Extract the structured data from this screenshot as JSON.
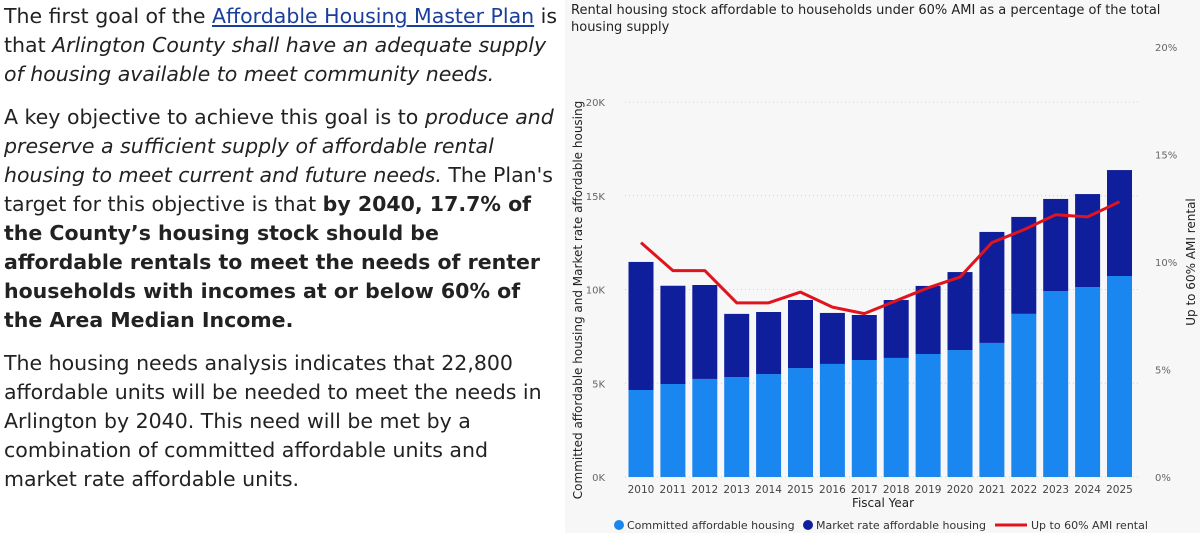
{
  "text": {
    "p1_a": "The first goal of the ",
    "p1_link": "Affordable Housing Master Plan",
    "p1_b": " is that ",
    "p1_italic": "Arlington County shall have an adequate supply of housing available to meet community needs.",
    "p2_a": "A key objective to achieve this goal is to ",
    "p2_italic": "produce and preserve a sufficient supply of affordable rental housing to meet current and future needs.",
    "p2_b": " The Plan's target for this objective is that ",
    "p2_bold": "by 2040, 17.7% of the County’s housing stock should be affordable rentals to meet the needs of renter households with incomes at or below 60% of the Area Median Income.",
    "p3": "The housing needs analysis indicates that 22,800 affordable units will be needed to meet the needs in Arlington by 2040. This need will be met by a combination of committed affordable units and market rate affordable units."
  },
  "chart_data": {
    "type": "bar",
    "stacked": true,
    "title": "Rental housing stock affordable to households under 60% AMI as a percentage of the total housing supply",
    "xlabel": "Fiscal Year",
    "ylabel": "Committed affordable housing and Market rate affordable housing",
    "y2label": "Up to 60% AMI rental",
    "categories": [
      "2010",
      "2011",
      "2012",
      "2013",
      "2014",
      "2015",
      "2016",
      "2017",
      "2018",
      "2019",
      "2020",
      "2021",
      "2022",
      "2023",
      "2024",
      "2025"
    ],
    "ylim": [
      0,
      20000
    ],
    "yticks": [
      "0K",
      "5K",
      "10K",
      "15K",
      "20K"
    ],
    "y2lim": [
      0,
      20
    ],
    "y2ticks": [
      "0%",
      "5%",
      "10%",
      "15%",
      "20%"
    ],
    "grid": true,
    "legend_position": "bottom",
    "series": [
      {
        "name": "Committed affordable housing",
        "type": "bar",
        "axis": "left",
        "color": "#1a86f0",
        "values": [
          4640,
          4960,
          5230,
          5330,
          5490,
          5810,
          6030,
          6240,
          6350,
          6560,
          6770,
          7150,
          8700,
          9920,
          10130,
          10720
        ]
      },
      {
        "name": "Market rate affordable housing",
        "type": "bar",
        "axis": "left",
        "color": "#0f1e9a",
        "values": [
          6830,
          5240,
          5010,
          3370,
          3310,
          3630,
          2720,
          2400,
          3090,
          3630,
          4160,
          5920,
          5170,
          4910,
          4960,
          5650
        ]
      },
      {
        "name": "Up to 60% AMI rental",
        "type": "line",
        "axis": "right",
        "color": "#e0141e",
        "values": [
          10.9,
          9.6,
          9.6,
          8.1,
          8.1,
          8.6,
          7.9,
          7.6,
          8.2,
          8.8,
          9.3,
          10.9,
          11.5,
          12.2,
          12.1,
          12.8
        ]
      }
    ]
  }
}
